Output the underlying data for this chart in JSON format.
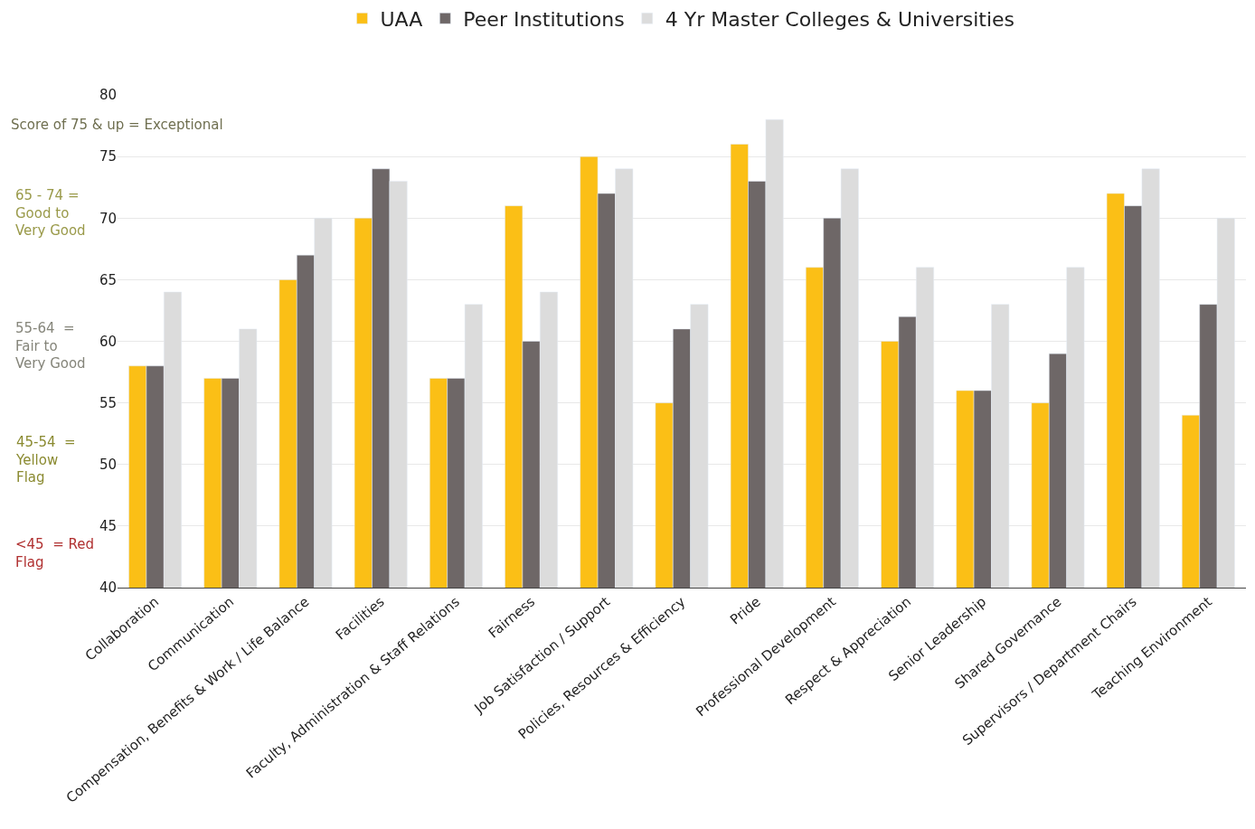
{
  "chart_data": {
    "type": "bar",
    "categories": [
      "Collaboration",
      "Communication",
      "Compensation, Benefits & Work / Life Balance",
      "Facilities",
      "Faculty, Administration & Staff Relations",
      "Fairness",
      "Job Satisfaction / Support",
      "Policies, Resources & Efficiency",
      "Pride",
      "Professional Development",
      "Respect & Appreciation",
      "Senior Leadership",
      "Shared Governance",
      "Supervisors / Department Chairs",
      "Teaching Environment"
    ],
    "series": [
      {
        "name": "UAA",
        "color": "#fbbf16",
        "values": [
          58,
          57,
          65,
          70,
          57,
          71,
          75,
          55,
          76,
          66,
          60,
          56,
          55,
          72,
          54
        ]
      },
      {
        "name": "Peer Institutions",
        "color": "#6e6767",
        "values": [
          58,
          57,
          67,
          74,
          57,
          60,
          72,
          61,
          73,
          70,
          62,
          56,
          59,
          71,
          63
        ]
      },
      {
        "name": "4 Yr Master Colleges & Universities",
        "color": "#dcdcdc",
        "values": [
          64,
          61,
          70,
          73,
          63,
          64,
          74,
          63,
          78,
          74,
          66,
          63,
          66,
          74,
          70
        ]
      }
    ],
    "ylim": [
      40,
      80
    ],
    "yticks": [
      40,
      45,
      50,
      55,
      60,
      65,
      70,
      75,
      80
    ],
    "grid": "y",
    "legend": "top",
    "annotations": [
      "Score of 75 & up = Exceptional",
      "65 - 74 = Good to Very Good",
      "55-64  = Fair to Very Good",
      "45-54  = Yellow Flag",
      "<45  = Red Flag"
    ]
  }
}
